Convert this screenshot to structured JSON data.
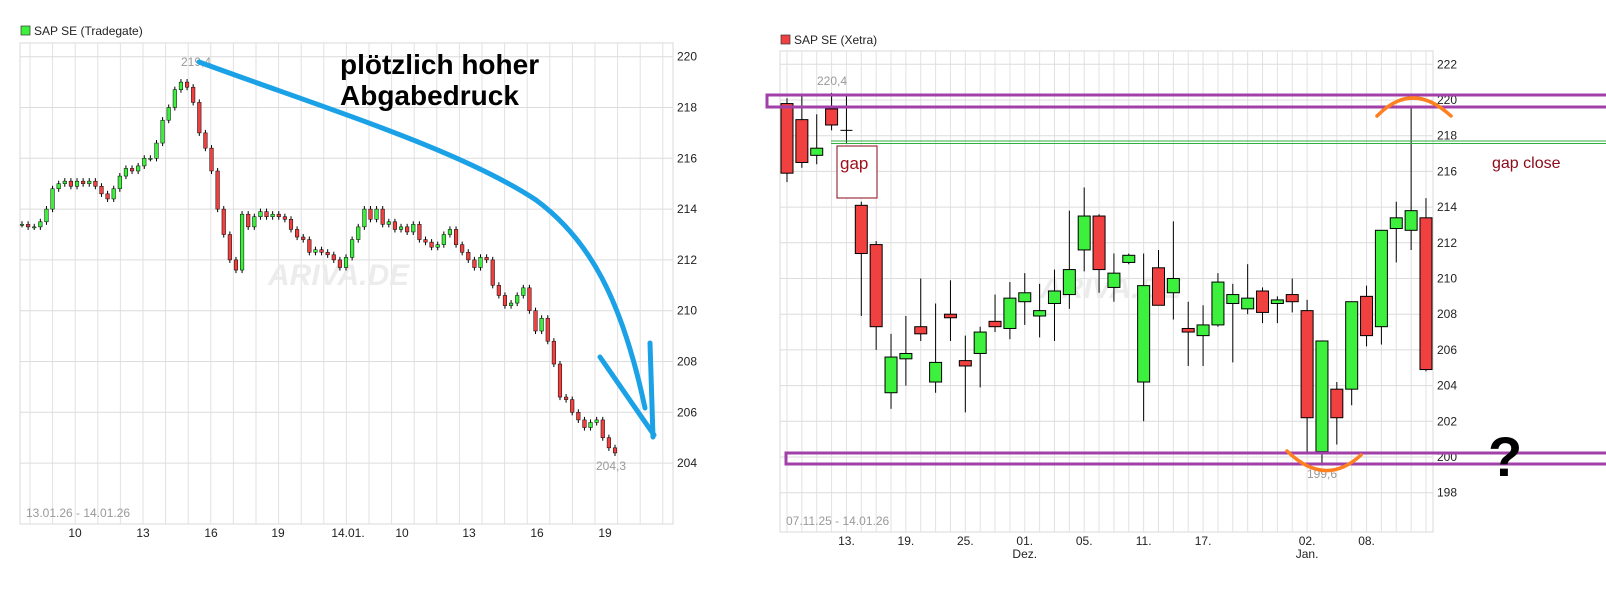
{
  "colors": {
    "up": "#3df03d",
    "down": "#f04040",
    "annotation_blue": "#1ba1e6",
    "annotation_purple": "#a040a8",
    "annotation_orange": "#ff8020",
    "gap_green": "#30b040",
    "gap_red": "#8b0a1a"
  },
  "chart_data": [
    {
      "type": "candlestick",
      "title": "SAP SE (Tradegate)",
      "legend_color": "#3df03d",
      "range_label": "13.01.26 - 14.01.26",
      "watermark": "ARIVA.DE",
      "ylim": [
        201.6,
        220.5
      ],
      "yticks": [
        204,
        206,
        208,
        210,
        212,
        214,
        216,
        218,
        220
      ],
      "xtick_labels": [
        "10",
        "13",
        "16",
        "19",
        "14.01.",
        "10",
        "13",
        "16",
        "19"
      ],
      "high_label": "219,4",
      "low_label": "204,3",
      "close": [
        213.4,
        213.3,
        213.3,
        213.5,
        214.0,
        214.8,
        215.0,
        215.1,
        214.9,
        215.1,
        215.0,
        215.1,
        214.9,
        214.6,
        214.4,
        214.8,
        215.3,
        215.6,
        215.5,
        215.7,
        216.0,
        216.0,
        216.6,
        217.5,
        218.0,
        218.7,
        219.0,
        218.8,
        218.2,
        217.0,
        216.4,
        215.5,
        214.0,
        213.0,
        212.0,
        211.6,
        213.8,
        213.3,
        213.7,
        213.9,
        213.7,
        213.8,
        213.7,
        213.6,
        213.2,
        212.9,
        212.8,
        212.3,
        212.4,
        212.3,
        212.2,
        212.0,
        211.7,
        212.1,
        212.8,
        213.3,
        214.0,
        213.6,
        214.0,
        213.4,
        213.5,
        213.2,
        213.3,
        213.1,
        213.4,
        212.8,
        212.7,
        212.5,
        212.6,
        213.0,
        213.2,
        212.6,
        212.3,
        212.0,
        211.7,
        212.1,
        212.0,
        211.0,
        210.6,
        210.2,
        210.3,
        210.6,
        210.9,
        210.0,
        209.2,
        209.7,
        208.8,
        207.9,
        206.6,
        206.5,
        206.0,
        205.7,
        205.4,
        205.6,
        205.7,
        205.0,
        204.6,
        204.4
      ],
      "annotation_text": [
        "plötzlich hoher",
        "Abgabedruck"
      ]
    },
    {
      "type": "candlestick",
      "title": "SAP SE (Xetra)",
      "legend_color": "#f04040",
      "range_label": "07.11.25 - 14.01.26",
      "watermark": "ARIVA.DE",
      "ylim": [
        196.4,
        224.9
      ],
      "yticks": [
        198,
        200,
        202,
        204,
        206,
        208,
        210,
        212,
        214,
        216,
        218,
        220,
        222
      ],
      "xticks": [
        {
          "label": "13.",
          "index": 4
        },
        {
          "label": "19.",
          "index": 8
        },
        {
          "label": "25.",
          "index": 12
        },
        {
          "label": "01.",
          "index": 16,
          "sub": "Dez."
        },
        {
          "label": "05.",
          "index": 20
        },
        {
          "label": "11.",
          "index": 24
        },
        {
          "label": "17.",
          "index": 28
        },
        {
          "label": "02.",
          "index": 35,
          "sub": "Jan."
        },
        {
          "label": "08.",
          "index": 39
        }
      ],
      "high_label": "220,4",
      "low_label": "199,6",
      "ohlc": [
        [
          219.8,
          220.1,
          215.4,
          215.9
        ],
        [
          218.9,
          220.2,
          216.2,
          216.5
        ],
        [
          216.9,
          219.2,
          216.4,
          217.3
        ],
        [
          219.5,
          220.4,
          218.3,
          218.6
        ],
        [
          218.3,
          220.2,
          217.6,
          218.3
        ],
        [
          214.1,
          214.3,
          207.9,
          211.4
        ],
        [
          211.9,
          212.1,
          206.0,
          207.3
        ],
        [
          203.6,
          206.9,
          202.7,
          205.6
        ],
        [
          205.5,
          207.9,
          204.0,
          205.8
        ],
        [
          207.3,
          210.0,
          206.5,
          206.9
        ],
        [
          204.2,
          208.6,
          203.6,
          205.3
        ],
        [
          208.0,
          209.9,
          206.5,
          207.8
        ],
        [
          205.4,
          206.8,
          202.5,
          205.1
        ],
        [
          205.8,
          207.3,
          203.9,
          207.0
        ],
        [
          207.6,
          209.1,
          207.0,
          207.3
        ],
        [
          207.2,
          209.8,
          206.6,
          208.9
        ],
        [
          208.7,
          210.3,
          207.4,
          209.2
        ],
        [
          207.9,
          209.7,
          206.7,
          208.2
        ],
        [
          208.6,
          210.5,
          206.5,
          209.3
        ],
        [
          209.1,
          213.8,
          208.3,
          210.5
        ],
        [
          211.6,
          215.1,
          210.4,
          213.5
        ],
        [
          213.5,
          213.6,
          209.2,
          210.5
        ],
        [
          209.5,
          211.4,
          208.7,
          210.3
        ],
        [
          210.9,
          211.4,
          210.8,
          211.3
        ],
        [
          204.2,
          211.4,
          202.0,
          209.6
        ],
        [
          210.6,
          211.6,
          208.5,
          208.5
        ],
        [
          209.2,
          213.2,
          207.7,
          210.0
        ],
        [
          207.2,
          208.7,
          205.1,
          207.0
        ],
        [
          206.8,
          208.5,
          205.1,
          207.4
        ],
        [
          207.4,
          210.3,
          207.3,
          209.8
        ],
        [
          208.6,
          209.7,
          205.3,
          209.1
        ],
        [
          208.3,
          210.8,
          208.0,
          208.9
        ],
        [
          209.3,
          209.5,
          207.5,
          208.1
        ],
        [
          208.6,
          209.0,
          207.5,
          208.8
        ],
        [
          209.1,
          210.0,
          208.1,
          208.7
        ],
        [
          208.2,
          208.8,
          200.2,
          202.2
        ],
        [
          200.3,
          206.5,
          199.6,
          206.5
        ],
        [
          203.8,
          204.2,
          200.7,
          202.2
        ],
        [
          203.8,
          208.7,
          202.9,
          208.7
        ],
        [
          209.0,
          209.6,
          206.2,
          206.8
        ],
        [
          207.3,
          212.7,
          206.3,
          212.7
        ],
        [
          212.8,
          214.3,
          210.9,
          213.4
        ],
        [
          212.7,
          219.6,
          211.6,
          213.8
        ],
        [
          213.4,
          214.5,
          204.8,
          204.9
        ]
      ],
      "annotations": {
        "gap_label": "gap",
        "gap_close_label": "gap close",
        "question_mark": "?",
        "resistance_level": 220,
        "support_level": 200,
        "gap_level": 217.5
      }
    }
  ]
}
